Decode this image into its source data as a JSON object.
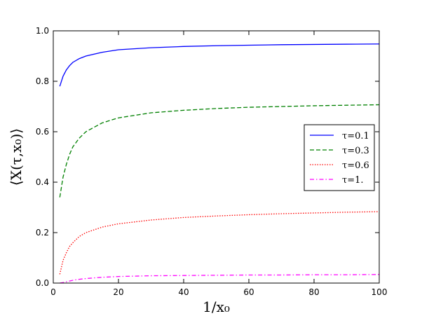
{
  "chart_data": {
    "type": "line",
    "xlabel": "1/x₀",
    "ylabel": "⟨X(τ,x₀)⟩",
    "xlim": [
      0,
      100
    ],
    "ylim": [
      0.0,
      1.0
    ],
    "xticks": [
      0,
      20,
      40,
      60,
      80,
      100
    ],
    "yticks": [
      0.0,
      0.2,
      0.4,
      0.6,
      0.8,
      1.0
    ],
    "xtick_labels": [
      "0",
      "20",
      "40",
      "60",
      "80",
      "100"
    ],
    "ytick_labels": [
      "0.0",
      "0.2",
      "0.4",
      "0.6",
      "0.8",
      "1.0"
    ],
    "grid": false,
    "legend_position": "center-right",
    "series": [
      {
        "name": "τ=0.1",
        "color": "#0000ff",
        "dash": "solid",
        "x": [
          2,
          3,
          4,
          5,
          6,
          8,
          10,
          15,
          20,
          30,
          40,
          50,
          60,
          70,
          80,
          90,
          100
        ],
        "y": [
          0.78,
          0.82,
          0.845,
          0.862,
          0.875,
          0.89,
          0.9,
          0.915,
          0.925,
          0.933,
          0.938,
          0.941,
          0.943,
          0.945,
          0.946,
          0.947,
          0.948
        ]
      },
      {
        "name": "τ=0.3",
        "color": "#008000",
        "dash": "dashed",
        "x": [
          2,
          3,
          4,
          5,
          6,
          8,
          10,
          15,
          20,
          30,
          40,
          50,
          60,
          70,
          80,
          90,
          100
        ],
        "y": [
          0.34,
          0.42,
          0.47,
          0.51,
          0.54,
          0.575,
          0.6,
          0.635,
          0.655,
          0.675,
          0.685,
          0.692,
          0.697,
          0.7,
          0.703,
          0.705,
          0.707
        ]
      },
      {
        "name": "τ=0.6",
        "color": "#ff0000",
        "dash": "dotted",
        "x": [
          2,
          3,
          4,
          5,
          6,
          8,
          10,
          15,
          20,
          30,
          40,
          50,
          60,
          70,
          80,
          90,
          100
        ],
        "y": [
          0.035,
          0.09,
          0.12,
          0.145,
          0.16,
          0.185,
          0.2,
          0.222,
          0.235,
          0.25,
          0.26,
          0.266,
          0.271,
          0.275,
          0.278,
          0.281,
          0.283
        ]
      },
      {
        "name": "τ=1.",
        "color": "#ff00ff",
        "dash": "dashdot",
        "x": [
          2,
          3,
          4,
          5,
          6,
          8,
          10,
          15,
          20,
          30,
          40,
          50,
          60,
          70,
          80,
          90,
          100
        ],
        "y": [
          0.0,
          0.002,
          0.005,
          0.008,
          0.011,
          0.015,
          0.018,
          0.023,
          0.026,
          0.029,
          0.03,
          0.031,
          0.032,
          0.032,
          0.033,
          0.033,
          0.034
        ]
      }
    ]
  }
}
